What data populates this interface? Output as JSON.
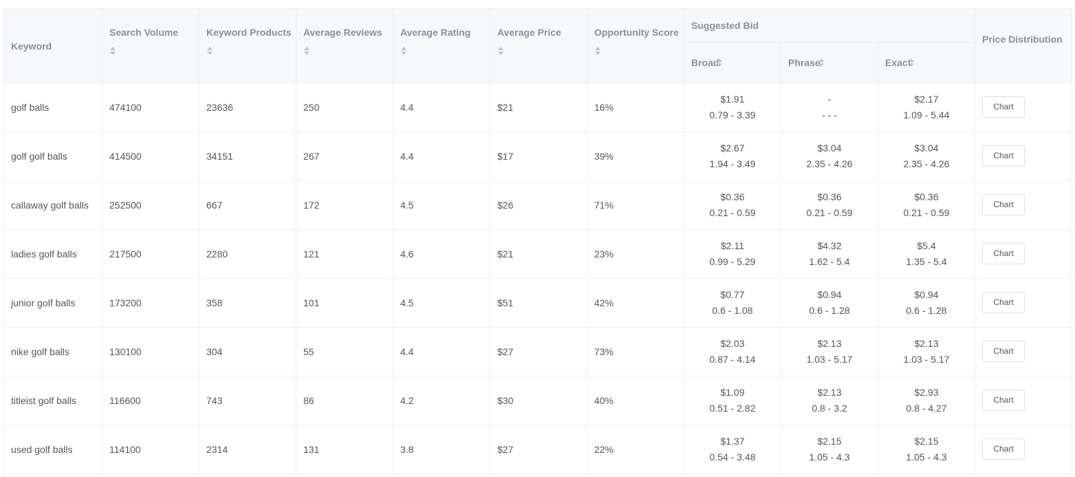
{
  "table": {
    "headers": {
      "keyword": "Keyword",
      "search_volume": "Search Volume",
      "keyword_products": "Keyword Products",
      "average_reviews": "Average Reviews",
      "average_rating": "Average Rating",
      "average_price": "Average Price",
      "opportunity_score": "Opportunity Score",
      "suggested_bid": "Suggested Bid",
      "broad": "Broad",
      "phrase": "Phrase",
      "exact": "Exact",
      "price_distribution": "Price Distribution"
    },
    "chart_button_label": "Chart",
    "rows": [
      {
        "keyword": "golf balls",
        "search_volume": "474100",
        "keyword_products": "23636",
        "average_reviews": "250",
        "average_rating": "4.4",
        "average_price": "$21",
        "opportunity_score": "16%",
        "broad_bid": "$1.91",
        "broad_range": "0.79 - 3.39",
        "phrase_bid": "-",
        "phrase_range": "- - -",
        "exact_bid": "$2.17",
        "exact_range": "1.09 - 5.44"
      },
      {
        "keyword": "golf golf balls",
        "search_volume": "414500",
        "keyword_products": "34151",
        "average_reviews": "267",
        "average_rating": "4.4",
        "average_price": "$17",
        "opportunity_score": "39%",
        "broad_bid": "$2.67",
        "broad_range": "1.94 - 3.49",
        "phrase_bid": "$3.04",
        "phrase_range": "2.35 - 4.26",
        "exact_bid": "$3.04",
        "exact_range": "2.35 - 4.26"
      },
      {
        "keyword": "callaway golf balls",
        "search_volume": "252500",
        "keyword_products": "667",
        "average_reviews": "172",
        "average_rating": "4.5",
        "average_price": "$26",
        "opportunity_score": "71%",
        "broad_bid": "$0.36",
        "broad_range": "0.21 - 0.59",
        "phrase_bid": "$0.36",
        "phrase_range": "0.21 - 0.59",
        "exact_bid": "$0.36",
        "exact_range": "0.21 - 0.59"
      },
      {
        "keyword": "ladies golf balls",
        "search_volume": "217500",
        "keyword_products": "2280",
        "average_reviews": "121",
        "average_rating": "4.6",
        "average_price": "$21",
        "opportunity_score": "23%",
        "broad_bid": "$2.11",
        "broad_range": "0.99 - 5.29",
        "phrase_bid": "$4.32",
        "phrase_range": "1.62 - 5.4",
        "exact_bid": "$5.4",
        "exact_range": "1.35 - 5.4"
      },
      {
        "keyword": "junior golf balls",
        "search_volume": "173200",
        "keyword_products": "358",
        "average_reviews": "101",
        "average_rating": "4.5",
        "average_price": "$51",
        "opportunity_score": "42%",
        "broad_bid": "$0.77",
        "broad_range": "0.6 - 1.08",
        "phrase_bid": "$0.94",
        "phrase_range": "0.6 - 1.28",
        "exact_bid": "$0.94",
        "exact_range": "0.6 - 1.28"
      },
      {
        "keyword": "nike golf balls",
        "search_volume": "130100",
        "keyword_products": "304",
        "average_reviews": "55",
        "average_rating": "4.4",
        "average_price": "$27",
        "opportunity_score": "73%",
        "broad_bid": "$2.03",
        "broad_range": "0.87 - 4.14",
        "phrase_bid": "$2.13",
        "phrase_range": "1.03 - 5.17",
        "exact_bid": "$2.13",
        "exact_range": "1.03 - 5.17"
      },
      {
        "keyword": "titleist golf balls",
        "search_volume": "116600",
        "keyword_products": "743",
        "average_reviews": "86",
        "average_rating": "4.2",
        "average_price": "$30",
        "opportunity_score": "40%",
        "broad_bid": "$1.09",
        "broad_range": "0.51 - 2.82",
        "phrase_bid": "$2.13",
        "phrase_range": "0.8 - 3.2",
        "exact_bid": "$2.93",
        "exact_range": "0.8 - 4.27"
      },
      {
        "keyword": "used golf balls",
        "search_volume": "114100",
        "keyword_products": "2314",
        "average_reviews": "131",
        "average_rating": "3.8",
        "average_price": "$27",
        "opportunity_score": "22%",
        "broad_bid": "$1.37",
        "broad_range": "0.54 - 3.48",
        "phrase_bid": "$2.15",
        "phrase_range": "1.05 - 4.3",
        "exact_bid": "$2.15",
        "exact_range": "1.05 - 4.3"
      }
    ]
  }
}
